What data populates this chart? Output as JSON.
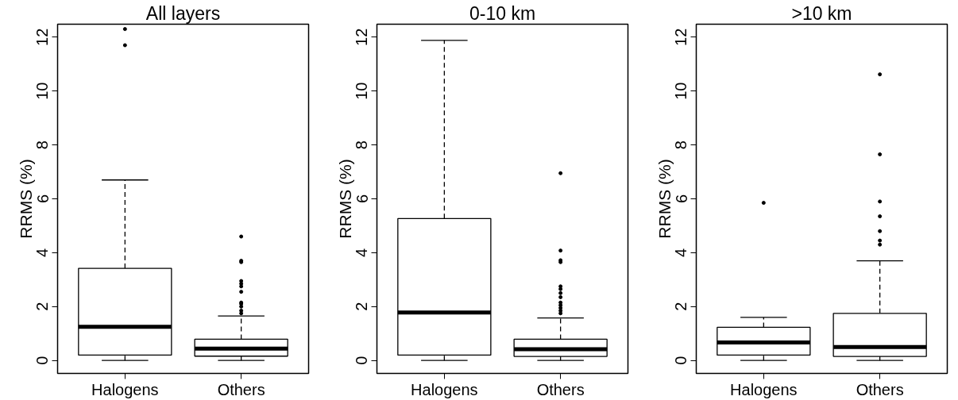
{
  "chart_data": [
    {
      "type": "box",
      "title": "All layers",
      "ylabel": "RRMS (%)",
      "categories": [
        "Halogens",
        "Others"
      ],
      "ylim": [
        -0.48,
        12.48
      ],
      "yticks": [
        0,
        2,
        4,
        6,
        8,
        10,
        12
      ],
      "grid": false,
      "boxes": [
        {
          "low": 0,
          "q1": 0.2,
          "median": 1.25,
          "q3": 3.42,
          "high": 6.7,
          "outliers": [
            11.7,
            12.3
          ]
        },
        {
          "low": 0,
          "q1": 0.16,
          "median": 0.44,
          "q3": 0.79,
          "high": 1.65,
          "outliers": [
            4.6,
            3.7,
            3.65,
            2.95,
            2.85,
            2.75,
            2.55,
            2.15,
            2.1,
            2.0,
            1.85,
            1.75
          ]
        }
      ]
    },
    {
      "type": "box",
      "title": "0-10 km",
      "ylabel": "RRMS (%)",
      "categories": [
        "Halogens",
        "Others"
      ],
      "ylim": [
        -0.48,
        12.48
      ],
      "yticks": [
        0,
        2,
        4,
        6,
        8,
        10,
        12
      ],
      "grid": false,
      "boxes": [
        {
          "low": 0,
          "q1": 0.2,
          "median": 1.78,
          "q3": 5.27,
          "high": 11.88
        },
        {
          "low": 0,
          "q1": 0.15,
          "median": 0.42,
          "q3": 0.79,
          "high": 1.58,
          "outliers": [
            6.95,
            4.08,
            3.72,
            3.65,
            2.75,
            2.65,
            2.5,
            2.35,
            2.15,
            2.05,
            1.95,
            1.85,
            1.75
          ]
        }
      ]
    },
    {
      "type": "box",
      "title": ">10 km",
      "ylabel": "RRMS (%)",
      "categories": [
        "Halogens",
        "Others"
      ],
      "ylim": [
        -0.48,
        12.48
      ],
      "yticks": [
        0,
        2,
        4,
        6,
        8,
        10,
        12
      ],
      "grid": false,
      "boxes": [
        {
          "low": 0,
          "q1": 0.2,
          "median": 0.67,
          "q3": 1.23,
          "high": 1.6,
          "outliers": [
            5.85
          ]
        },
        {
          "low": 0,
          "q1": 0.15,
          "median": 0.5,
          "q3": 1.75,
          "high": 3.7,
          "outliers": [
            10.62,
            7.65,
            5.9,
            5.35,
            4.8,
            4.45,
            4.3
          ]
        }
      ]
    }
  ]
}
